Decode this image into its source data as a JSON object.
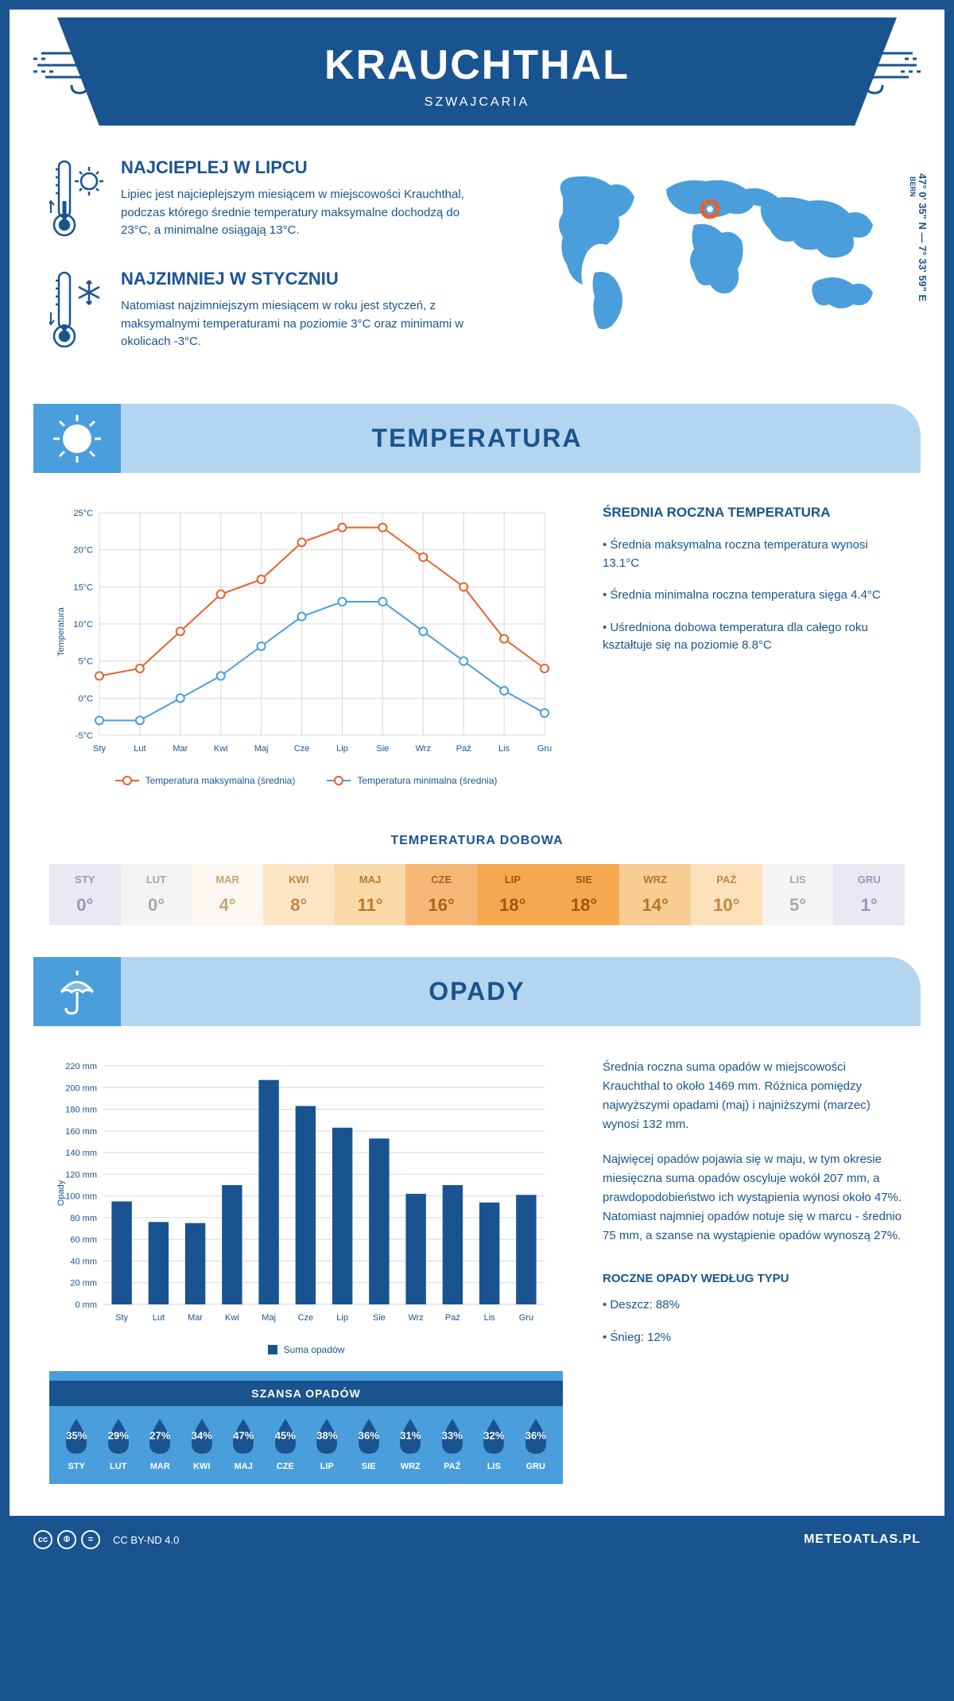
{
  "header": {
    "title": "KRAUCHTHAL",
    "subtitle": "SZWAJCARIA"
  },
  "coords": {
    "main": "47° 0' 35\" N — 7° 33' 59\" E",
    "sub": "BERN"
  },
  "intro": {
    "warm": {
      "title": "NAJCIEPLEJ W LIPCU",
      "text": "Lipiec jest najcieplejszym miesiącem w miejscowości Krauchthal, podczas którego średnie temperatury maksymalne dochodzą do 23°C, a minimalne osiągają 13°C."
    },
    "cold": {
      "title": "NAJZIMNIEJ W STYCZNIU",
      "text": "Natomiast najzimniejszym miesiącem w roku jest styczeń, z maksymalnymi temperaturami na poziomie 3°C oraz minimami w okolicach -3°C."
    }
  },
  "sections": {
    "temp": "TEMPERATURA",
    "precip": "OPADY"
  },
  "months_short": [
    "Sty",
    "Lut",
    "Mar",
    "Kwi",
    "Maj",
    "Cze",
    "Lip",
    "Sie",
    "Wrz",
    "Paź",
    "Lis",
    "Gru"
  ],
  "months_upper": [
    "STY",
    "LUT",
    "MAR",
    "KWI",
    "MAJ",
    "CZE",
    "LIP",
    "SIE",
    "WRZ",
    "PAŹ",
    "LIS",
    "GRU"
  ],
  "temp_chart": {
    "type": "line",
    "ylabel": "Temperatura",
    "ylim": [
      -5,
      25
    ],
    "ytick_step": 5,
    "yticks": [
      "-5°C",
      "0°C",
      "5°C",
      "10°C",
      "15°C",
      "20°C",
      "25°C"
    ],
    "series": {
      "max": {
        "label": "Temperatura maksymalna (średnia)",
        "color": "#e8612c",
        "values": [
          3,
          4,
          9,
          14,
          16,
          21,
          23,
          23,
          19,
          15,
          8,
          4
        ]
      },
      "min": {
        "label": "Temperatura minimalna (średnia)",
        "color": "#4a9edb",
        "values": [
          -3,
          -3,
          0,
          3,
          7,
          11,
          13,
          13,
          9,
          5,
          1,
          -2
        ]
      }
    },
    "grid_color": "#d8d8d8",
    "background": "#ffffff",
    "marker_size": 5,
    "line_width": 2
  },
  "temp_info": {
    "title": "ŚREDNIA ROCZNA TEMPERATURA",
    "items": [
      "• Średnia maksymalna roczna temperatura wynosi 13.1°C",
      "• Średnia minimalna roczna temperatura sięga 4.4°C",
      "• Uśredniona dobowa temperatura dla całego roku kształtuje się na poziomie 8.8°C"
    ]
  },
  "daily": {
    "title": "TEMPERATURA DOBOWA",
    "values": [
      "0°",
      "0°",
      "4°",
      "8°",
      "11°",
      "16°",
      "18°",
      "18°",
      "14°",
      "10°",
      "5°",
      "1°"
    ],
    "bg_colors": [
      "#e9e8f3",
      "#f4f4f4",
      "#fcf7f0",
      "#fce6c6",
      "#fad9a8",
      "#f7b877",
      "#f5a84e",
      "#f5a84e",
      "#f9cd93",
      "#fce1bb",
      "#f4f4f4",
      "#e9e8f3"
    ],
    "text_colors": [
      "#9a97b8",
      "#a8a8a8",
      "#c5a576",
      "#c08840",
      "#b87a2a",
      "#a8651a",
      "#9c5810",
      "#9c5810",
      "#b37728",
      "#c08840",
      "#a8a8a8",
      "#9a97b8"
    ]
  },
  "precip_chart": {
    "type": "bar",
    "ylabel": "Opady",
    "ylim": [
      0,
      220
    ],
    "ytick_step": 20,
    "yticks": [
      "0 mm",
      "20 mm",
      "40 mm",
      "60 mm",
      "80 mm",
      "100 mm",
      "120 mm",
      "140 mm",
      "160 mm",
      "180 mm",
      "200 mm",
      "220 mm"
    ],
    "values": [
      95,
      76,
      75,
      110,
      207,
      183,
      163,
      153,
      102,
      110,
      94,
      101
    ],
    "bar_color": "#1a5490",
    "grid_color": "#d8d8d8",
    "bar_width": 0.55,
    "legend": "Suma opadów"
  },
  "precip_info": {
    "p1": "Średnia roczna suma opadów w miejscowości Krauchthal to około 1469 mm. Różnica pomiędzy najwyższymi opadami (maj) i najniższymi (marzec) wynosi 132 mm.",
    "p2": "Najwięcej opadów pojawia się w maju, w tym okresie miesięczna suma opadów oscyluje wokół 207 mm, a prawdopodobieństwo ich wystąpienia wynosi około 47%. Natomiast najmniej opadów notuje się w marcu - średnio 75 mm, a szanse na wystąpienie opadów wynoszą 27%.",
    "type_title": "ROCZNE OPADY WEDŁUG TYPU",
    "types": [
      "• Deszcz: 88%",
      "• Śnieg: 12%"
    ]
  },
  "chance": {
    "title": "SZANSA OPADÓW",
    "values": [
      "35%",
      "29%",
      "27%",
      "34%",
      "47%",
      "45%",
      "38%",
      "36%",
      "31%",
      "33%",
      "32%",
      "36%"
    ],
    "drop_fill": "#1a5490",
    "box_bg": "#4a9edb"
  },
  "footer": {
    "license": "CC BY-ND 4.0",
    "site": "METEOATLAS.PL"
  },
  "colors": {
    "primary": "#1a5490",
    "accent": "#4a9edb",
    "light": "#b4d5ef",
    "orange": "#e8612c"
  }
}
